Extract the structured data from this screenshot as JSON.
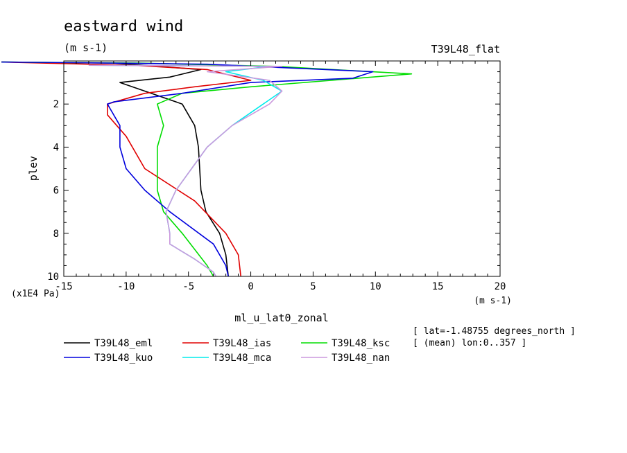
{
  "chart_data": {
    "type": "line",
    "title": "eastward wind",
    "units": "(m s-1)",
    "run_label": "T39L48_flat",
    "xlabel": "ml_u_lat0_zonal",
    "xunits": "(m s-1)",
    "ylabel": "plev",
    "yunits": "(x1E4 Pa)",
    "xlim": [
      -15,
      20
    ],
    "ylim": [
      10,
      0
    ],
    "xticks": [
      "-15",
      "-10",
      "-5",
      "0",
      "5",
      "10",
      "15",
      "20"
    ],
    "yticks": [
      "2",
      "4",
      "6",
      "8",
      "10"
    ],
    "info": [
      "[ lat=-1.48755 degrees_north ]",
      "[ (mean) lon:0..357 ]"
    ],
    "legend_position": "bottom",
    "grid": false,
    "series": [
      {
        "name": "T39L48_eml",
        "color": "#000000",
        "x": [
          -20,
          -11,
          -4,
          -6.5,
          -10.5,
          -5.5,
          -4.5,
          -4.2,
          -4.0,
          -3.6,
          -2.5,
          -2.0,
          -1.8
        ],
        "y": [
          0.05,
          0.1,
          0.4,
          0.75,
          1.0,
          2.0,
          3.0,
          4.0,
          6.0,
          7.0,
          8.0,
          9.0,
          10.0
        ]
      },
      {
        "name": "T39L48_ias",
        "color": "#e00000",
        "x": [
          -20,
          -9.5,
          -3.5,
          0.0,
          -4.5,
          -8.5,
          -11.5,
          -11.5,
          -10.0,
          -8.5,
          -4.5,
          -2.0,
          -1.0,
          -0.8
        ],
        "y": [
          0.05,
          0.2,
          0.4,
          0.9,
          1.2,
          1.5,
          2.0,
          2.5,
          3.5,
          5.0,
          6.5,
          8.0,
          9.0,
          10.0
        ]
      },
      {
        "name": "T39L48_ksc",
        "color": "#00dd00",
        "x": [
          -20,
          -9,
          2,
          12.9,
          0,
          -5.5,
          -7.5,
          -7.0,
          -7.5,
          -7.5,
          -7.0,
          -5.5,
          -3.5,
          -3.0
        ],
        "y": [
          0.05,
          0.1,
          0.25,
          0.6,
          1.2,
          1.5,
          2.0,
          3.0,
          4.0,
          6.0,
          7.0,
          8.0,
          9.5,
          10.0
        ]
      },
      {
        "name": "T39L48_kuo",
        "color": "#0000dd",
        "x": [
          -20,
          -14,
          -3.5,
          9.8,
          8.2,
          0,
          -5.5,
          -11,
          -11.5,
          -10.5,
          -10.5,
          -10.0,
          -8.5,
          -6.5,
          -3.0,
          -2.0,
          -1.8
        ],
        "y": [
          0.05,
          0.08,
          0.15,
          0.5,
          0.8,
          1.0,
          1.5,
          1.9,
          2.0,
          3.0,
          4.0,
          5.0,
          6.0,
          7.0,
          8.5,
          9.5,
          10.0
        ]
      },
      {
        "name": "T39L48_mca",
        "color": "#00ebeb",
        "x": [
          -13,
          1.5,
          -2.0,
          1.0,
          2.5,
          1.0,
          -1.5,
          -3.5,
          -6.0,
          -6.8,
          -6.5,
          -6.5,
          -4.5,
          -3.0,
          -2.8
        ],
        "y": [
          0.2,
          0.25,
          0.5,
          0.9,
          1.4,
          2.0,
          3.0,
          4.0,
          6.0,
          7.0,
          8.0,
          8.5,
          9.2,
          9.8,
          10.0
        ]
      },
      {
        "name": "T39L48_nan",
        "color": "#cc99dd",
        "x": [
          -13,
          2.5,
          -3.5,
          1.5,
          2.5,
          1.5,
          -1.5,
          -3.5,
          -6.0,
          -6.8,
          -6.5,
          -6.5,
          -4.5,
          -3.0,
          -2.8
        ],
        "y": [
          0.2,
          0.25,
          0.5,
          0.9,
          1.4,
          2.0,
          3.0,
          4.0,
          6.0,
          7.0,
          8.0,
          8.5,
          9.2,
          9.8,
          10.0
        ]
      }
    ]
  }
}
